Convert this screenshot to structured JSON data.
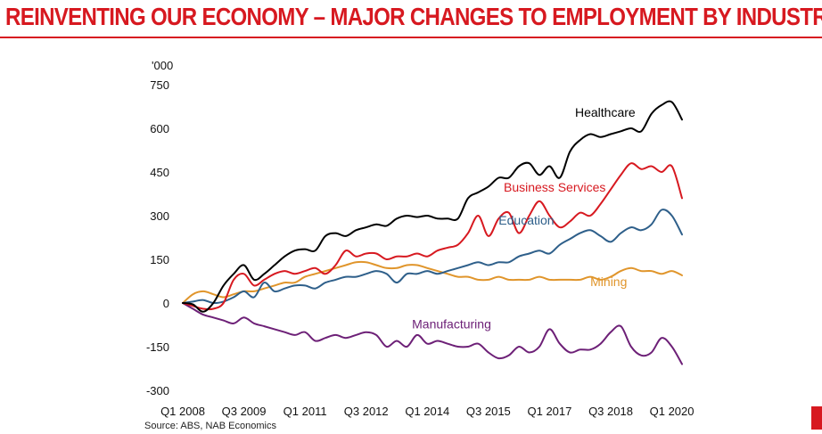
{
  "header": {
    "title": "REINVENTING OUR ECONOMY – MAJOR CHANGES TO EMPLOYMENT BY INDUSTRY"
  },
  "source": "Source: ABS, NAB Economics",
  "colors": {
    "title": "#d71920",
    "healthcare": "#000000",
    "business": "#d71920",
    "education": "#2e5f8a",
    "mining": "#e0952b",
    "manufacturing": "#6d2077"
  },
  "chart_data": {
    "type": "line",
    "title": "",
    "unit_label": "'000",
    "ylim": [
      -300,
      750
    ],
    "yticks": [
      750,
      600,
      450,
      300,
      150,
      0,
      -150,
      -300
    ],
    "ytick_labels": [
      "750",
      "600",
      "450",
      "300",
      "150",
      "0",
      "-150",
      "-300"
    ],
    "xlim": [
      0,
      49
    ],
    "xticks": [
      {
        "x": 0,
        "label": "Q1 2008"
      },
      {
        "x": 6,
        "label": "Q3 2009"
      },
      {
        "x": 12,
        "label": "Q1 2011"
      },
      {
        "x": 18,
        "label": "Q3 2012"
      },
      {
        "x": 24,
        "label": "Q1 2014"
      },
      {
        "x": 30,
        "label": "Q3 2015"
      },
      {
        "x": 36,
        "label": "Q1 2017"
      },
      {
        "x": 42,
        "label": "Q3 2018"
      },
      {
        "x": 48,
        "label": "Q1 2020"
      }
    ],
    "series": [
      {
        "name": "Healthcare",
        "color": "#000000",
        "label_at": [
          38.5,
          640
        ],
        "label_anchor": "start",
        "points": [
          [
            0,
            0
          ],
          [
            1,
            -5
          ],
          [
            2,
            -30
          ],
          [
            3,
            0
          ],
          [
            4,
            60
          ],
          [
            5,
            100
          ],
          [
            6,
            130
          ],
          [
            7,
            80
          ],
          [
            8,
            100
          ],
          [
            9,
            130
          ],
          [
            10,
            160
          ],
          [
            11,
            180
          ],
          [
            12,
            185
          ],
          [
            13,
            180
          ],
          [
            14,
            230
          ],
          [
            15,
            240
          ],
          [
            16,
            230
          ],
          [
            17,
            250
          ],
          [
            18,
            260
          ],
          [
            19,
            270
          ],
          [
            20,
            265
          ],
          [
            21,
            290
          ],
          [
            22,
            300
          ],
          [
            23,
            295
          ],
          [
            24,
            300
          ],
          [
            25,
            290
          ],
          [
            26,
            290
          ],
          [
            27,
            290
          ],
          [
            28,
            360
          ],
          [
            29,
            380
          ],
          [
            30,
            400
          ],
          [
            31,
            430
          ],
          [
            32,
            430
          ],
          [
            33,
            470
          ],
          [
            34,
            480
          ],
          [
            35,
            440
          ],
          [
            36,
            470
          ],
          [
            37,
            430
          ],
          [
            38,
            520
          ],
          [
            39,
            560
          ],
          [
            40,
            580
          ],
          [
            41,
            570
          ],
          [
            42,
            580
          ],
          [
            43,
            590
          ],
          [
            44,
            600
          ],
          [
            45,
            590
          ],
          [
            46,
            650
          ],
          [
            47,
            680
          ],
          [
            48,
            690
          ],
          [
            49,
            630
          ]
        ]
      },
      {
        "name": "Business Services",
        "color": "#d71920",
        "label_at": [
          31.5,
          383
        ],
        "label_anchor": "start",
        "points": [
          [
            0,
            0
          ],
          [
            1,
            -10
          ],
          [
            2,
            -20
          ],
          [
            3,
            -20
          ],
          [
            4,
            0
          ],
          [
            5,
            80
          ],
          [
            6,
            100
          ],
          [
            7,
            60
          ],
          [
            8,
            80
          ],
          [
            9,
            100
          ],
          [
            10,
            110
          ],
          [
            11,
            100
          ],
          [
            12,
            110
          ],
          [
            13,
            120
          ],
          [
            14,
            100
          ],
          [
            15,
            130
          ],
          [
            16,
            180
          ],
          [
            17,
            160
          ],
          [
            18,
            170
          ],
          [
            19,
            170
          ],
          [
            20,
            150
          ],
          [
            21,
            160
          ],
          [
            22,
            160
          ],
          [
            23,
            170
          ],
          [
            24,
            160
          ],
          [
            25,
            180
          ],
          [
            26,
            190
          ],
          [
            27,
            200
          ],
          [
            28,
            240
          ],
          [
            29,
            300
          ],
          [
            30,
            230
          ],
          [
            31,
            290
          ],
          [
            32,
            310
          ],
          [
            33,
            240
          ],
          [
            34,
            300
          ],
          [
            35,
            350
          ],
          [
            36,
            300
          ],
          [
            37,
            260
          ],
          [
            38,
            280
          ],
          [
            39,
            310
          ],
          [
            40,
            300
          ],
          [
            41,
            340
          ],
          [
            42,
            390
          ],
          [
            43,
            440
          ],
          [
            44,
            480
          ],
          [
            45,
            460
          ],
          [
            46,
            470
          ],
          [
            47,
            450
          ],
          [
            48,
            470
          ],
          [
            49,
            360
          ]
        ]
      },
      {
        "name": "Education",
        "color": "#2e5f8a",
        "label_at": [
          31,
          270
        ],
        "label_anchor": "start",
        "points": [
          [
            0,
            0
          ],
          [
            1,
            5
          ],
          [
            2,
            10
          ],
          [
            3,
            0
          ],
          [
            4,
            5
          ],
          [
            5,
            20
          ],
          [
            6,
            40
          ],
          [
            7,
            20
          ],
          [
            8,
            70
          ],
          [
            9,
            40
          ],
          [
            10,
            50
          ],
          [
            11,
            60
          ],
          [
            12,
            60
          ],
          [
            13,
            50
          ],
          [
            14,
            70
          ],
          [
            15,
            80
          ],
          [
            16,
            90
          ],
          [
            17,
            90
          ],
          [
            18,
            100
          ],
          [
            19,
            110
          ],
          [
            20,
            100
          ],
          [
            21,
            70
          ],
          [
            22,
            100
          ],
          [
            23,
            100
          ],
          [
            24,
            110
          ],
          [
            25,
            100
          ],
          [
            26,
            110
          ],
          [
            27,
            120
          ],
          [
            28,
            130
          ],
          [
            29,
            140
          ],
          [
            30,
            130
          ],
          [
            31,
            140
          ],
          [
            32,
            140
          ],
          [
            33,
            160
          ],
          [
            34,
            170
          ],
          [
            35,
            180
          ],
          [
            36,
            170
          ],
          [
            37,
            200
          ],
          [
            38,
            220
          ],
          [
            39,
            240
          ],
          [
            40,
            250
          ],
          [
            41,
            230
          ],
          [
            42,
            210
          ],
          [
            43,
            240
          ],
          [
            44,
            260
          ],
          [
            45,
            250
          ],
          [
            46,
            270
          ],
          [
            47,
            320
          ],
          [
            48,
            300
          ],
          [
            49,
            235
          ]
        ]
      },
      {
        "name": "Mining",
        "color": "#e0952b",
        "label_at": [
          40,
          58
        ],
        "label_anchor": "start",
        "points": [
          [
            0,
            0
          ],
          [
            1,
            30
          ],
          [
            2,
            40
          ],
          [
            3,
            30
          ],
          [
            4,
            20
          ],
          [
            5,
            30
          ],
          [
            6,
            40
          ],
          [
            7,
            40
          ],
          [
            8,
            50
          ],
          [
            9,
            60
          ],
          [
            10,
            70
          ],
          [
            11,
            70
          ],
          [
            12,
            90
          ],
          [
            13,
            100
          ],
          [
            14,
            110
          ],
          [
            15,
            120
          ],
          [
            16,
            130
          ],
          [
            17,
            140
          ],
          [
            18,
            140
          ],
          [
            19,
            130
          ],
          [
            20,
            120
          ],
          [
            21,
            120
          ],
          [
            22,
            130
          ],
          [
            23,
            130
          ],
          [
            24,
            120
          ],
          [
            25,
            110
          ],
          [
            26,
            100
          ],
          [
            27,
            90
          ],
          [
            28,
            90
          ],
          [
            29,
            80
          ],
          [
            30,
            80
          ],
          [
            31,
            90
          ],
          [
            32,
            80
          ],
          [
            33,
            80
          ],
          [
            34,
            80
          ],
          [
            35,
            90
          ],
          [
            36,
            80
          ],
          [
            37,
            80
          ],
          [
            38,
            80
          ],
          [
            39,
            80
          ],
          [
            40,
            90
          ],
          [
            41,
            80
          ],
          [
            42,
            90
          ],
          [
            43,
            110
          ],
          [
            44,
            120
          ],
          [
            45,
            110
          ],
          [
            46,
            110
          ],
          [
            47,
            100
          ],
          [
            48,
            110
          ],
          [
            49,
            95
          ]
        ]
      },
      {
        "name": "Manufacturing",
        "color": "#6d2077",
        "label_at": [
          22.5,
          -88
        ],
        "label_anchor": "start",
        "points": [
          [
            0,
            0
          ],
          [
            1,
            -20
          ],
          [
            2,
            -40
          ],
          [
            3,
            -50
          ],
          [
            4,
            -60
          ],
          [
            5,
            -70
          ],
          [
            6,
            -50
          ],
          [
            7,
            -70
          ],
          [
            8,
            -80
          ],
          [
            9,
            -90
          ],
          [
            10,
            -100
          ],
          [
            11,
            -110
          ],
          [
            12,
            -100
          ],
          [
            13,
            -130
          ],
          [
            14,
            -120
          ],
          [
            15,
            -110
          ],
          [
            16,
            -120
          ],
          [
            17,
            -110
          ],
          [
            18,
            -100
          ],
          [
            19,
            -110
          ],
          [
            20,
            -150
          ],
          [
            21,
            -130
          ],
          [
            22,
            -150
          ],
          [
            23,
            -110
          ],
          [
            24,
            -140
          ],
          [
            25,
            -130
          ],
          [
            26,
            -140
          ],
          [
            27,
            -150
          ],
          [
            28,
            -150
          ],
          [
            29,
            -140
          ],
          [
            30,
            -170
          ],
          [
            31,
            -190
          ],
          [
            32,
            -180
          ],
          [
            33,
            -150
          ],
          [
            34,
            -170
          ],
          [
            35,
            -150
          ],
          [
            36,
            -90
          ],
          [
            37,
            -140
          ],
          [
            38,
            -170
          ],
          [
            39,
            -160
          ],
          [
            40,
            -160
          ],
          [
            41,
            -140
          ],
          [
            42,
            -100
          ],
          [
            43,
            -80
          ],
          [
            44,
            -150
          ],
          [
            45,
            -180
          ],
          [
            46,
            -170
          ],
          [
            47,
            -120
          ],
          [
            48,
            -150
          ],
          [
            49,
            -210
          ]
        ]
      }
    ]
  }
}
